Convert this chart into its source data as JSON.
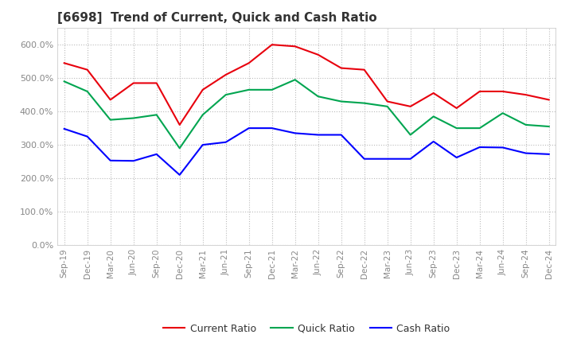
{
  "title": "[6698]  Trend of Current, Quick and Cash Ratio",
  "labels": [
    "Sep-19",
    "Dec-19",
    "Mar-20",
    "Jun-20",
    "Sep-20",
    "Dec-20",
    "Mar-21",
    "Jun-21",
    "Sep-21",
    "Dec-21",
    "Mar-22",
    "Jun-22",
    "Sep-22",
    "Dec-22",
    "Mar-23",
    "Jun-23",
    "Sep-23",
    "Dec-23",
    "Mar-24",
    "Jun-24",
    "Sep-24",
    "Dec-24"
  ],
  "current_ratio": [
    545,
    525,
    435,
    485,
    485,
    360,
    465,
    510,
    545,
    600,
    595,
    570,
    530,
    525,
    430,
    415,
    455,
    410,
    460,
    460,
    450,
    435
  ],
  "quick_ratio": [
    490,
    460,
    375,
    380,
    390,
    290,
    390,
    450,
    465,
    465,
    495,
    445,
    430,
    425,
    415,
    330,
    385,
    350,
    350,
    395,
    360,
    355
  ],
  "cash_ratio": [
    348,
    325,
    253,
    252,
    272,
    210,
    300,
    308,
    350,
    350,
    335,
    330,
    330,
    258,
    258,
    258,
    310,
    262,
    293,
    292,
    275,
    272
  ],
  "ylim": [
    0,
    650
  ],
  "yticks": [
    0,
    100,
    200,
    300,
    400,
    500,
    600
  ],
  "ytick_labels": [
    "0.0%",
    "100.0%",
    "200.0%",
    "300.0%",
    "400.0%",
    "500.0%",
    "600.0%"
  ],
  "current_color": "#e8000d",
  "quick_color": "#00a550",
  "cash_color": "#0000ff",
  "bg_color": "#ffffff",
  "grid_color": "#bbbbbb",
  "tick_color": "#888888",
  "legend_labels": [
    "Current Ratio",
    "Quick Ratio",
    "Cash Ratio"
  ],
  "title_fontsize": 11,
  "tick_fontsize": 8,
  "legend_fontsize": 9
}
